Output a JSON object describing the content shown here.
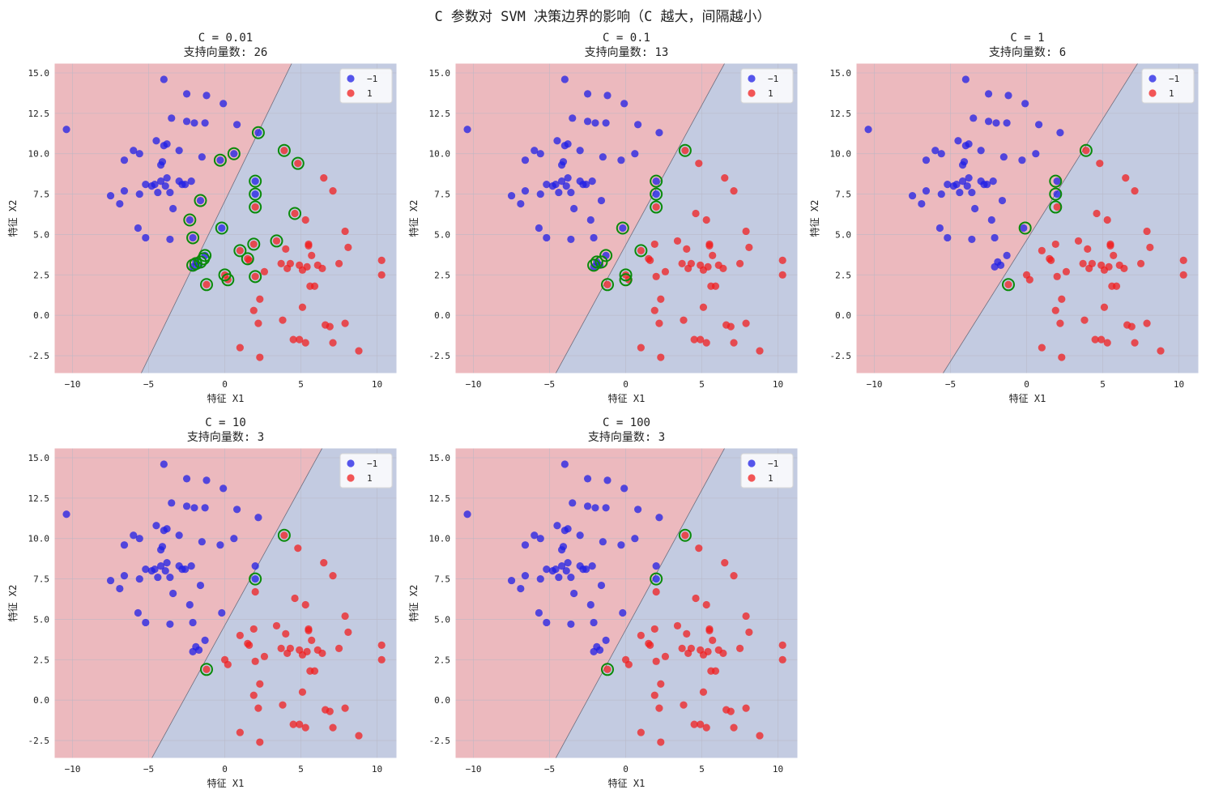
{
  "figure": {
    "suptitle": "C 参数对 SVM 决策边界的影响（C 越大，间隔越小）"
  },
  "colors": {
    "region_neg": "#c3cbe1",
    "region_pos": "#ecb9be",
    "point_neg": "#1f1fe6",
    "point_pos": "#f01f1f",
    "sv_ring": "#0a8a0a",
    "grid": "#b8b8c4",
    "boundary": "#6e6e7e"
  },
  "chart_data": {
    "type": "scatter",
    "xlabel": "特征 X1",
    "ylabel": "特征 X2",
    "xlim": [
      -11.2,
      11.3
    ],
    "ylim": [
      -3.6,
      15.6
    ],
    "xticks": [
      -10,
      -5,
      0,
      5,
      10
    ],
    "yticks": [
      -2.5,
      0.0,
      2.5,
      5.0,
      7.5,
      10.0,
      12.5,
      15.0
    ],
    "legend": {
      "placement": "top-right",
      "entries": [
        "−1",
        "1"
      ]
    },
    "class_neg": [
      [
        -10.4,
        11.5
      ],
      [
        -4.0,
        14.6
      ],
      [
        -2.5,
        13.7
      ],
      [
        -1.2,
        13.6
      ],
      [
        -2.5,
        12.0
      ],
      [
        -2.0,
        11.9
      ],
      [
        -1.3,
        11.9
      ],
      [
        -3.5,
        12.2
      ],
      [
        -0.1,
        13.1
      ],
      [
        0.8,
        11.8
      ],
      [
        -4.5,
        10.8
      ],
      [
        -4.0,
        10.5
      ],
      [
        -3.8,
        10.6
      ],
      [
        -6.0,
        10.2
      ],
      [
        -5.6,
        10.0
      ],
      [
        -3.0,
        10.2
      ],
      [
        -6.6,
        9.6
      ],
      [
        -4.1,
        9.5
      ],
      [
        -1.5,
        9.8
      ],
      [
        -0.3,
        9.6
      ],
      [
        0.6,
        10.0
      ],
      [
        -4.2,
        9.3
      ],
      [
        -7.5,
        7.4
      ],
      [
        -6.9,
        6.9
      ],
      [
        -6.6,
        7.7
      ],
      [
        -5.2,
        8.1
      ],
      [
        -4.8,
        8.0
      ],
      [
        -4.6,
        8.1
      ],
      [
        -4.2,
        8.3
      ],
      [
        -3.8,
        8.5
      ],
      [
        -3.0,
        8.3
      ],
      [
        -2.6,
        8.1
      ],
      [
        -2.2,
        8.3
      ],
      [
        -3.9,
        8.0
      ],
      [
        -2.8,
        8.1
      ],
      [
        -5.6,
        7.5
      ],
      [
        -4.4,
        7.6
      ],
      [
        -3.6,
        7.6
      ],
      [
        -1.6,
        7.1
      ],
      [
        -3.4,
        6.6
      ],
      [
        -5.7,
        5.4
      ],
      [
        -2.3,
        5.9
      ],
      [
        -5.2,
        4.8
      ],
      [
        -3.6,
        4.7
      ],
      [
        -2.1,
        4.8
      ],
      [
        -1.7,
        3.1
      ],
      [
        -2.1,
        3.0
      ],
      [
        -0.2,
        5.4
      ],
      [
        -1.3,
        3.7
      ],
      [
        -1.9,
        3.3
      ],
      [
        2.0,
        8.3
      ],
      [
        2.0,
        7.5
      ],
      [
        2.2,
        11.3
      ]
    ],
    "class_pos": [
      [
        3.9,
        10.2
      ],
      [
        4.8,
        9.4
      ],
      [
        6.5,
        8.5
      ],
      [
        7.1,
        7.7
      ],
      [
        2.0,
        6.7
      ],
      [
        4.6,
        6.3
      ],
      [
        5.3,
        5.9
      ],
      [
        3.4,
        4.6
      ],
      [
        5.5,
        4.4
      ],
      [
        5.5,
        4.3
      ],
      [
        7.9,
        5.2
      ],
      [
        8.1,
        4.2
      ],
      [
        1.9,
        4.4
      ],
      [
        1.0,
        4.0
      ],
      [
        1.5,
        3.5
      ],
      [
        1.6,
        3.4
      ],
      [
        4.0,
        4.1
      ],
      [
        5.7,
        3.7
      ],
      [
        3.7,
        3.2
      ],
      [
        4.1,
        2.9
      ],
      [
        4.9,
        3.1
      ],
      [
        5.4,
        3.0
      ],
      [
        6.1,
        3.1
      ],
      [
        6.4,
        2.9
      ],
      [
        7.5,
        3.2
      ],
      [
        4.3,
        3.2
      ],
      [
        10.3,
        3.4
      ],
      [
        10.3,
        2.5
      ],
      [
        -1.2,
        1.9
      ],
      [
        0.2,
        2.2
      ],
      [
        0.0,
        2.5
      ],
      [
        2.6,
        2.7
      ],
      [
        2.0,
        2.4
      ],
      [
        5.1,
        2.8
      ],
      [
        5.6,
        1.8
      ],
      [
        5.9,
        1.8
      ],
      [
        2.3,
        1.0
      ],
      [
        1.9,
        0.3
      ],
      [
        5.1,
        0.5
      ],
      [
        3.8,
        -0.3
      ],
      [
        6.6,
        -0.6
      ],
      [
        6.9,
        -0.7
      ],
      [
        7.9,
        -0.5
      ],
      [
        2.2,
        -0.5
      ],
      [
        4.5,
        -1.5
      ],
      [
        4.9,
        -1.5
      ],
      [
        5.3,
        -1.7
      ],
      [
        7.1,
        -1.7
      ],
      [
        8.8,
        -2.2
      ],
      [
        1.0,
        -2.0
      ],
      [
        2.3,
        -2.6
      ]
    ],
    "panels": [
      {
        "title": "C = 0.01",
        "subtitle": "支持向量数: 26",
        "n_support": 26,
        "boundary": [
          [
            -5.5,
            -3.6
          ],
          [
            4.4,
            15.6
          ]
        ],
        "support_vectors": [
          [
            2.2,
            11.3
          ],
          [
            3.9,
            10.2
          ],
          [
            0.6,
            10.0
          ],
          [
            -0.3,
            9.6
          ],
          [
            4.8,
            9.4
          ],
          [
            2.0,
            8.3
          ],
          [
            2.0,
            7.5
          ],
          [
            -1.6,
            7.1
          ],
          [
            2.0,
            6.7
          ],
          [
            4.6,
            6.3
          ],
          [
            -2.3,
            5.9
          ],
          [
            -0.2,
            5.4
          ],
          [
            -2.1,
            4.8
          ],
          [
            3.4,
            4.6
          ],
          [
            1.9,
            4.4
          ],
          [
            1.0,
            4.0
          ],
          [
            -1.3,
            3.7
          ],
          [
            1.5,
            3.5
          ],
          [
            -1.6,
            3.3
          ],
          [
            -1.9,
            3.2
          ],
          [
            -2.1,
            3.1
          ],
          [
            0.0,
            2.5
          ],
          [
            2.0,
            2.4
          ],
          [
            0.2,
            2.2
          ],
          [
            -1.2,
            1.9
          ],
          [
            -1.4,
            3.5
          ]
        ]
      },
      {
        "title": "C = 0.1",
        "subtitle": "支持向量数: 13",
        "n_support": 13,
        "boundary": [
          [
            -4.6,
            -3.6
          ],
          [
            6.5,
            15.6
          ]
        ],
        "support_vectors": [
          [
            3.9,
            10.2
          ],
          [
            2.0,
            8.3
          ],
          [
            2.0,
            7.5
          ],
          [
            2.0,
            6.7
          ],
          [
            -0.2,
            5.4
          ],
          [
            1.0,
            4.0
          ],
          [
            -1.3,
            3.7
          ],
          [
            -1.9,
            3.3
          ],
          [
            -2.1,
            3.1
          ],
          [
            0.0,
            2.5
          ],
          [
            0.0,
            2.2
          ],
          [
            -1.2,
            1.9
          ],
          [
            -1.6,
            3.3
          ]
        ]
      },
      {
        "title": "C = 1",
        "subtitle": "支持向量数: 6",
        "n_support": 6,
        "boundary": [
          [
            -5.5,
            -3.6
          ],
          [
            7.3,
            15.6
          ]
        ],
        "support_vectors": [
          [
            3.9,
            10.2
          ],
          [
            1.9,
            8.3
          ],
          [
            1.9,
            7.5
          ],
          [
            1.9,
            6.7
          ],
          [
            -0.1,
            5.4
          ],
          [
            -1.2,
            1.9
          ]
        ]
      },
      {
        "title": "C = 10",
        "subtitle": "支持向量数: 3",
        "n_support": 3,
        "boundary": [
          [
            -4.8,
            -3.6
          ],
          [
            6.4,
            15.6
          ]
        ],
        "support_vectors": [
          [
            3.9,
            10.2
          ],
          [
            2.0,
            7.5
          ],
          [
            -1.2,
            1.9
          ]
        ]
      },
      {
        "title": "C = 100",
        "subtitle": "支持向量数: 3",
        "n_support": 3,
        "boundary": [
          [
            -4.6,
            -3.6
          ],
          [
            6.5,
            15.6
          ]
        ],
        "support_vectors": [
          [
            3.9,
            10.2
          ],
          [
            2.0,
            7.5
          ],
          [
            -1.2,
            1.9
          ]
        ]
      }
    ]
  }
}
